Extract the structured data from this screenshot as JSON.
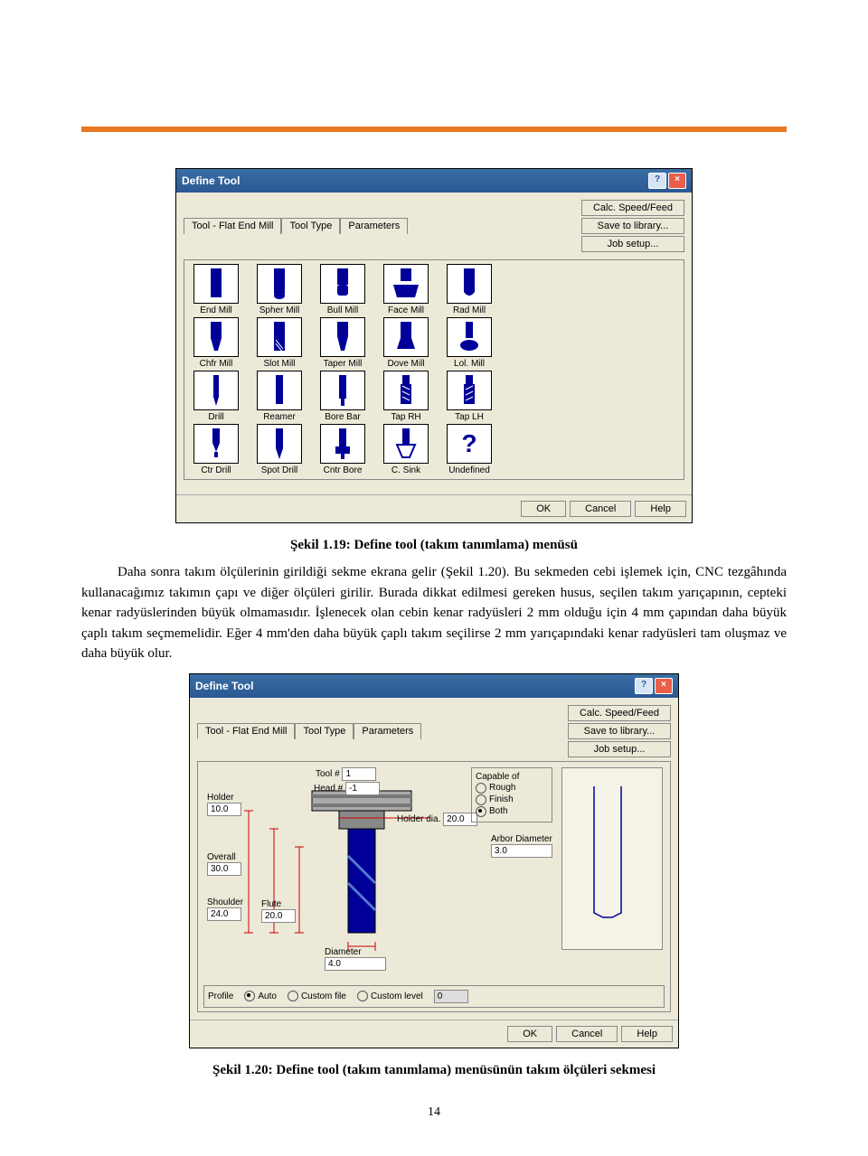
{
  "colors": {
    "orange": "#e87722",
    "dialogBg": "#ece9d8",
    "titleBar1": "#3b6ea5",
    "titleBar2": "#2a5893",
    "toolBlue": "#000099"
  },
  "dialog1": {
    "title": "Define Tool",
    "tabs": [
      "Tool - Flat End Mill",
      "Tool Type",
      "Parameters"
    ],
    "activeTab": 1,
    "sideButtons": [
      "Calc. Speed/Feed",
      "Save to library...",
      "Job setup..."
    ],
    "tools": [
      {
        "label": "End Mill"
      },
      {
        "label": "Spher Mill"
      },
      {
        "label": "Bull Mill"
      },
      {
        "label": "Face Mill"
      },
      {
        "label": "Rad Mill"
      },
      {
        "label": "Chfr Mill"
      },
      {
        "label": "Slot Mill"
      },
      {
        "label": "Taper Mill"
      },
      {
        "label": "Dove Mill"
      },
      {
        "label": "Lol. Mill"
      },
      {
        "label": "Drill"
      },
      {
        "label": "Reamer"
      },
      {
        "label": "Bore Bar"
      },
      {
        "label": "Tap RH"
      },
      {
        "label": "Tap LH"
      },
      {
        "label": "Ctr Drill"
      },
      {
        "label": "Spot Drill"
      },
      {
        "label": "Cntr Bore"
      },
      {
        "label": "C. Sink"
      },
      {
        "label": "Undefined"
      }
    ],
    "footerButtons": [
      "OK",
      "Cancel",
      "Help"
    ]
  },
  "caption1": "Şekil 1.19: Define tool (takım tanımlama) menüsü",
  "paragraph": "Daha sonra takım ölçülerinin girildiği sekme ekrana gelir (Şekil 1.20). Bu sekmeden cebi işlemek için, CNC tezgâhında kullanacağımız takımın çapı ve diğer ölçüleri girilir. Burada dikkat edilmesi gereken husus, seçilen takım yarıçapının, cepteki kenar radyüslerinden büyük olmamasıdır. İşlenecek olan cebin kenar radyüsleri 2 mm olduğu için 4 mm çapından daha büyük çaplı takım seçmemelidir. Eğer 4 mm'den daha büyük çaplı takım seçilirse 2 mm yarıçapındaki kenar radyüsleri tam oluşmaz ve daha büyük olur.",
  "dialog2": {
    "title": "Define Tool",
    "tabs": [
      "Tool - Flat End Mill",
      "Tool Type",
      "Parameters"
    ],
    "activeTab": 0,
    "sideButtons": [
      "Calc. Speed/Feed",
      "Save to library...",
      "Job setup..."
    ],
    "params": {
      "holder": {
        "label": "Holder",
        "value": "10.0"
      },
      "toolNum": {
        "label": "Tool #",
        "value": "1"
      },
      "headNum": {
        "label": "Head #",
        "value": "-1"
      },
      "holderDia": {
        "label": "Holder dia.",
        "value": "20.0"
      },
      "overall": {
        "label": "Overall",
        "value": "30.0"
      },
      "shoulder": {
        "label": "Shoulder",
        "value": "24.0"
      },
      "flute": {
        "label": "Flute",
        "value": "20.0"
      },
      "diameter": {
        "label": "Diameter",
        "value": "4.0"
      },
      "arborDia": {
        "label": "Arbor Diameter",
        "value": "3.0"
      }
    },
    "capableOf": {
      "title": "Capable of",
      "options": [
        "Rough",
        "Finish",
        "Both"
      ],
      "selected": 2
    },
    "profile": {
      "title": "Profile",
      "options": [
        "Auto",
        "Custom file",
        "Custom level"
      ],
      "selected": 0,
      "levelValue": "0"
    },
    "footerButtons": [
      "OK",
      "Cancel",
      "Help"
    ]
  },
  "caption2": "Şekil 1.20: Define tool (takım tanımlama) menüsünün takım ölçüleri sekmesi",
  "pageNumber": "14"
}
